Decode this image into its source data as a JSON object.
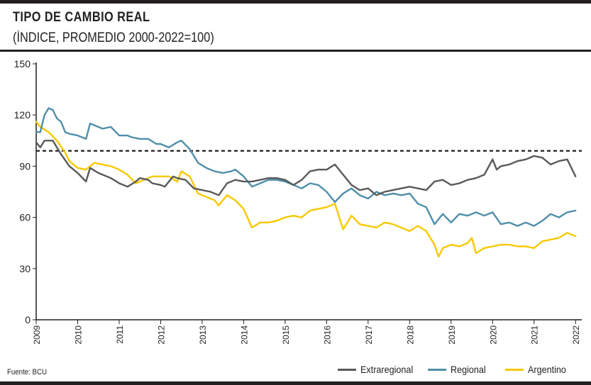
{
  "header": {
    "title": "TIPO DE CAMBIO REAL",
    "subtitle": "(ÍNDICE, PROMEDIO 2000-2022=100)"
  },
  "footer": {
    "source": "Fuente: BCU"
  },
  "colors": {
    "extraregional": "#58595b",
    "regional": "#4f8ea9",
    "argentino": "#f7c900",
    "reference": "#231f20",
    "axis": "#231f20",
    "grid": "#d9d9d9"
  },
  "chart_data": {
    "type": "line",
    "title": "TIPO DE CAMBIO REAL",
    "subtitle": "(ÍNDICE, PROMEDIO 2000-2022=100)",
    "xlabel": "",
    "ylabel": "",
    "xlim": [
      2009,
      2022.15
    ],
    "ylim": [
      0,
      150
    ],
    "yticks": [
      0,
      30,
      60,
      90,
      120,
      150
    ],
    "xticks": [
      "2009",
      "2010",
      "2011",
      "2012",
      "2013",
      "2014",
      "2015",
      "2016",
      "2017",
      "2018",
      "2019",
      "2020",
      "2021",
      "2022"
    ],
    "grid": false,
    "legend_position": "bottom-right",
    "reference_line": {
      "value": 99,
      "style": "dashed"
    },
    "series": [
      {
        "name": "Extraregional",
        "color_key": "extraregional",
        "x": [
          2009.0,
          2009.1,
          2009.2,
          2009.4,
          2009.5,
          2009.6,
          2009.8,
          2010.0,
          2010.2,
          2010.3,
          2010.5,
          2010.6,
          2010.8,
          2011.0,
          2011.2,
          2011.4,
          2011.5,
          2011.7,
          2011.8,
          2012.0,
          2012.1,
          2012.3,
          2012.4,
          2012.6,
          2012.8,
          2013.0,
          2013.2,
          2013.4,
          2013.6,
          2013.8,
          2014.0,
          2014.2,
          2014.4,
          2014.6,
          2014.8,
          2015.0,
          2015.2,
          2015.4,
          2015.6,
          2015.8,
          2016.0,
          2016.2,
          2016.4,
          2016.6,
          2016.8,
          2017.0,
          2017.2,
          2017.4,
          2017.6,
          2017.8,
          2018.0,
          2018.2,
          2018.4,
          2018.6,
          2018.8,
          2019.0,
          2019.2,
          2019.4,
          2019.6,
          2019.8,
          2020.0,
          2020.1,
          2020.2,
          2020.4,
          2020.6,
          2020.8,
          2021.0,
          2021.2,
          2021.4,
          2021.6,
          2021.8,
          2022.0
        ],
        "values": [
          104,
          101,
          105,
          105,
          101,
          97,
          90,
          86,
          81,
          89,
          86,
          85,
          83,
          80,
          78,
          81,
          83,
          82,
          80,
          79,
          78,
          84,
          83,
          82,
          77,
          76,
          75,
          73,
          80,
          82,
          81,
          81,
          82,
          83,
          83,
          82,
          79,
          82,
          87,
          88,
          88,
          91,
          85,
          79,
          76,
          77,
          73,
          75,
          76,
          77,
          78,
          77,
          76,
          81,
          82,
          79,
          80,
          82,
          83,
          85,
          94,
          88,
          90,
          91,
          93,
          94,
          96,
          95,
          91,
          93,
          94,
          84
        ]
      },
      {
        "name": "Regional",
        "color_key": "regional",
        "x": [
          2009.0,
          2009.1,
          2009.2,
          2009.3,
          2009.4,
          2009.5,
          2009.6,
          2009.7,
          2009.8,
          2010.0,
          2010.2,
          2010.3,
          2010.4,
          2010.6,
          2010.8,
          2011.0,
          2011.2,
          2011.3,
          2011.5,
          2011.7,
          2011.9,
          2012.0,
          2012.2,
          2012.4,
          2012.5,
          2012.7,
          2012.9,
          2013.1,
          2013.3,
          2013.5,
          2013.7,
          2013.8,
          2014.0,
          2014.2,
          2014.4,
          2014.6,
          2014.8,
          2015.0,
          2015.2,
          2015.4,
          2015.6,
          2015.8,
          2016.0,
          2016.2,
          2016.4,
          2016.6,
          2016.8,
          2017.0,
          2017.2,
          2017.4,
          2017.6,
          2017.8,
          2018.0,
          2018.2,
          2018.4,
          2018.6,
          2018.8,
          2019.0,
          2019.2,
          2019.4,
          2019.6,
          2019.8,
          2020.0,
          2020.2,
          2020.4,
          2020.6,
          2020.8,
          2021.0,
          2021.2,
          2021.4,
          2021.6,
          2021.8,
          2022.0
        ],
        "values": [
          110,
          110,
          120,
          124,
          123,
          118,
          116,
          110,
          109,
          108,
          106,
          115,
          114,
          112,
          113,
          108,
          108,
          107,
          106,
          106,
          103,
          103,
          101,
          104,
          105,
          100,
          92,
          89,
          87,
          86,
          87,
          88,
          84,
          78,
          80,
          82,
          82,
          81,
          79,
          77,
          80,
          79,
          75,
          69,
          74,
          77,
          73,
          71,
          75,
          73,
          74,
          73,
          74,
          68,
          66,
          56,
          62,
          57,
          62,
          61,
          63,
          61,
          63,
          56,
          57,
          55,
          57,
          55,
          58,
          62,
          60,
          63,
          64
        ]
      },
      {
        "name": "Argentino",
        "color_key": "argentino",
        "x": [
          2009.0,
          2009.1,
          2009.3,
          2009.5,
          2009.7,
          2009.8,
          2010.0,
          2010.2,
          2010.4,
          2010.6,
          2010.8,
          2011.0,
          2011.2,
          2011.4,
          2011.6,
          2011.8,
          2012.0,
          2012.2,
          2012.4,
          2012.5,
          2012.7,
          2012.9,
          2013.1,
          2013.3,
          2013.4,
          2013.6,
          2013.8,
          2014.0,
          2014.2,
          2014.4,
          2014.6,
          2014.8,
          2015.0,
          2015.2,
          2015.4,
          2015.6,
          2015.8,
          2016.0,
          2016.2,
          2016.4,
          2016.6,
          2016.8,
          2017.0,
          2017.2,
          2017.4,
          2017.6,
          2017.8,
          2018.0,
          2018.2,
          2018.4,
          2018.5,
          2018.6,
          2018.7,
          2018.8,
          2019.0,
          2019.2,
          2019.4,
          2019.5,
          2019.6,
          2019.8,
          2020.0,
          2020.2,
          2020.4,
          2020.6,
          2020.8,
          2021.0,
          2021.2,
          2021.4,
          2021.6,
          2021.8,
          2022.0
        ],
        "values": [
          116,
          113,
          110,
          105,
          98,
          93,
          89,
          88,
          92,
          91,
          90,
          88,
          85,
          80,
          82,
          84,
          84,
          84,
          81,
          87,
          84,
          74,
          72,
          70,
          67,
          73,
          70,
          65,
          54,
          57,
          57,
          58,
          60,
          61,
          60,
          64,
          65,
          66,
          68,
          53,
          61,
          56,
          55,
          54,
          57,
          56,
          54,
          52,
          55,
          52,
          48,
          44,
          37,
          42,
          44,
          43,
          45,
          48,
          39,
          42,
          43,
          44,
          44,
          43,
          43,
          42,
          46,
          47,
          48,
          51,
          49
        ]
      }
    ]
  }
}
